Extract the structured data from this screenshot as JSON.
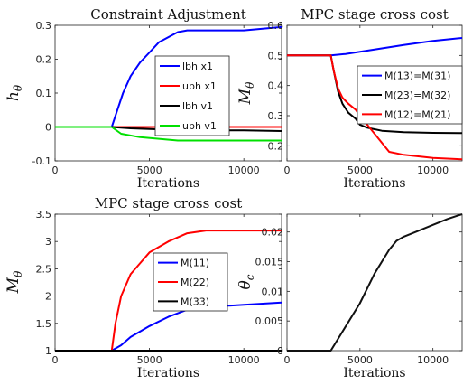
{
  "chart_data": [
    {
      "type": "line",
      "title": "Constraint Adjustment",
      "xlabel": "Iterations",
      "ylabel": "h_θ",
      "xlim": [
        0,
        12000
      ],
      "ylim": [
        -0.1,
        0.3
      ],
      "xticks": [
        "0",
        "5000",
        "10000"
      ],
      "xtick_values": [
        0,
        5000,
        10000
      ],
      "yticks": [
        "-0.1",
        "0",
        "0.1",
        "0.2",
        "0.3"
      ],
      "ytick_values": [
        -0.1,
        0,
        0.1,
        0.2,
        0.3
      ],
      "legend_position": "right",
      "series": [
        {
          "name": "lbh x1",
          "color": "#0000ff",
          "x": [
            0,
            3000,
            3300,
            3600,
            4000,
            4500,
            5000,
            5500,
            6000,
            6500,
            7000,
            8000,
            9000,
            10000,
            11000,
            12000
          ],
          "y": [
            0,
            0,
            0.05,
            0.1,
            0.15,
            0.19,
            0.22,
            0.25,
            0.265,
            0.28,
            0.285,
            0.285,
            0.285,
            0.285,
            0.29,
            0.295
          ]
        },
        {
          "name": "ubh x1",
          "color": "#ff0000",
          "x": [
            0,
            3000,
            12000
          ],
          "y": [
            0,
            0,
            0
          ]
        },
        {
          "name": "lbh v1",
          "color": "#000000",
          "x": [
            0,
            3000,
            4000,
            6000,
            8000,
            10000,
            12000
          ],
          "y": [
            0,
            0,
            -0.004,
            -0.008,
            -0.01,
            -0.01,
            -0.012
          ]
        },
        {
          "name": "ubh v1",
          "color": "#00e000",
          "x": [
            0,
            3000,
            3500,
            4500,
            5500,
            6500,
            8000,
            10000,
            12000
          ],
          "y": [
            0,
            0,
            -0.02,
            -0.03,
            -0.035,
            -0.04,
            -0.04,
            -0.04,
            -0.04
          ]
        }
      ]
    },
    {
      "type": "line",
      "title": "MPC stage cross cost",
      "xlabel": "Iterations",
      "ylabel": "M_θ",
      "xlim": [
        0,
        12000
      ],
      "ylim": [
        0.15,
        0.6
      ],
      "xticks": [
        "0",
        "5000",
        "10000"
      ],
      "xtick_values": [
        0,
        5000,
        10000
      ],
      "yticks": [
        "0.2",
        "0.3",
        "0.4",
        "0.5",
        "0.6"
      ],
      "ytick_values": [
        0.2,
        0.3,
        0.4,
        0.5,
        0.6
      ],
      "legend_position": "top-right",
      "series": [
        {
          "name": "M(13)=M(31)",
          "color": "#0000ff",
          "x": [
            0,
            3000,
            4000,
            6000,
            8000,
            10000,
            12000
          ],
          "y": [
            0.5,
            0.5,
            0.505,
            0.52,
            0.535,
            0.548,
            0.558
          ]
        },
        {
          "name": "M(23)=M(32)",
          "color": "#000000",
          "x": [
            0,
            3000,
            3200,
            3500,
            3800,
            4200,
            4700,
            5000,
            5500,
            6000,
            6500,
            7000,
            8000,
            10000,
            12000
          ],
          "y": [
            0.5,
            0.5,
            0.45,
            0.38,
            0.34,
            0.31,
            0.29,
            0.27,
            0.26,
            0.255,
            0.25,
            0.248,
            0.245,
            0.243,
            0.242
          ]
        },
        {
          "name": "M(12)=M(21)",
          "color": "#ff0000",
          "x": [
            0,
            3000,
            3200,
            3500,
            3800,
            4200,
            4700,
            5000,
            5500,
            6000,
            6500,
            7000,
            8000,
            9000,
            10000,
            12000
          ],
          "y": [
            0.5,
            0.5,
            0.45,
            0.39,
            0.36,
            0.34,
            0.32,
            0.3,
            0.27,
            0.24,
            0.21,
            0.18,
            0.17,
            0.165,
            0.16,
            0.155
          ]
        }
      ]
    },
    {
      "type": "line",
      "title": "MPC stage cross cost",
      "xlabel": "Iterations",
      "ylabel": "M_θ",
      "xlim": [
        0,
        12000
      ],
      "ylim": [
        1,
        3.5
      ],
      "xticks": [
        "0",
        "5000",
        "10000"
      ],
      "xtick_values": [
        0,
        5000,
        10000
      ],
      "yticks": [
        "1",
        "1.5",
        "2",
        "2.5",
        "3",
        "3.5"
      ],
      "ytick_values": [
        1,
        1.5,
        2,
        2.5,
        3,
        3.5
      ],
      "legend_position": "right",
      "series": [
        {
          "name": "M(11)",
          "color": "#0000ff",
          "x": [
            0,
            3000,
            3500,
            4000,
            4500,
            5000,
            6000,
            7000,
            8000,
            10000,
            12000
          ],
          "y": [
            1,
            1,
            1.1,
            1.25,
            1.35,
            1.45,
            1.62,
            1.75,
            1.8,
            1.84,
            1.88
          ]
        },
        {
          "name": "M(22)",
          "color": "#ff0000",
          "x": [
            0,
            3000,
            3200,
            3500,
            4000,
            4500,
            5000,
            6000,
            7000,
            8000,
            10000,
            12000
          ],
          "y": [
            1,
            1,
            1.5,
            2.0,
            2.4,
            2.6,
            2.8,
            3.0,
            3.15,
            3.2,
            3.2,
            3.2
          ]
        },
        {
          "name": "M(33)",
          "color": "#000000",
          "x": [
            0,
            12000
          ],
          "y": [
            1,
            1
          ]
        }
      ]
    },
    {
      "type": "line",
      "title": "",
      "xlabel": "Iterations",
      "ylabel": "θ_c",
      "xlim": [
        0,
        12000
      ],
      "ylim": [
        0,
        0.023
      ],
      "xticks": [
        "0",
        "5000",
        "10000"
      ],
      "xtick_values": [
        0,
        5000,
        10000
      ],
      "yticks": [
        "0",
        "0.005",
        "0.01",
        "0.015",
        "0.02"
      ],
      "ytick_values": [
        0,
        0.005,
        0.01,
        0.015,
        0.02
      ],
      "legend_position": "none",
      "series": [
        {
          "name": "",
          "color": "#111111",
          "x": [
            0,
            3000,
            3500,
            4000,
            5000,
            6000,
            7000,
            7500,
            8000,
            9000,
            10000,
            11000,
            12000
          ],
          "y": [
            0,
            0,
            0.002,
            0.004,
            0.008,
            0.013,
            0.017,
            0.0185,
            0.0192,
            0.0202,
            0.0212,
            0.0222,
            0.023
          ]
        }
      ]
    }
  ]
}
